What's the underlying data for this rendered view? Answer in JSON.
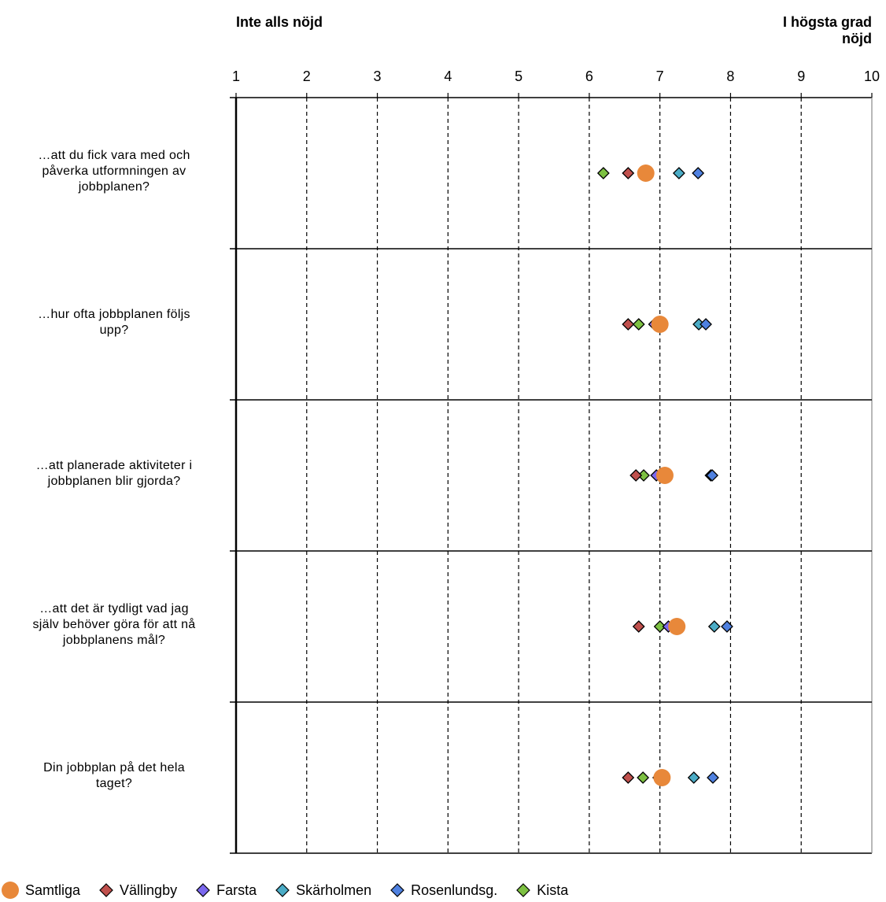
{
  "chart_data": {
    "type": "scatter",
    "axis_left_label": "Inte alls nöjd",
    "axis_right_label": "I högsta grad nöjd",
    "xlim": [
      1,
      10
    ],
    "ticks": [
      "1",
      "2",
      "3",
      "4",
      "5",
      "6",
      "7",
      "8",
      "9",
      "10"
    ],
    "grid": true,
    "orientation": "horizontal dot plot",
    "categories": [
      "…att du fick vara med och påverka utformningen av jobbplanen?",
      "…hur ofta jobbplanen följs upp?",
      "…att planerade aktiviteter i jobbplanen blir gjorda?",
      "…att det är tydligt vad jag själv behöver göra för att nå jobbplanens mål?",
      "Din jobbplan på det hela taget?"
    ],
    "series": [
      {
        "name": "Samtliga",
        "marker": "circle",
        "color": "#E8883A",
        "values": [
          6.8,
          7.0,
          7.07,
          7.24,
          7.03
        ]
      },
      {
        "name": "Vällingby",
        "marker": "diamond",
        "color": "#C0504D",
        "values": [
          6.55,
          6.55,
          6.66,
          6.7,
          6.55
        ]
      },
      {
        "name": "Farsta",
        "marker": "diamond",
        "color": "#7B68EE",
        "values": [
          6.8,
          6.92,
          6.95,
          7.12,
          6.98
        ]
      },
      {
        "name": "Skärholmen",
        "marker": "diamond",
        "color": "#4BACC6",
        "values": [
          7.27,
          7.55,
          7.72,
          7.77,
          7.48
        ]
      },
      {
        "name": "Rosenlundsg.",
        "marker": "diamond",
        "color": "#4F81E0",
        "values": [
          7.54,
          7.65,
          7.74,
          7.95,
          7.75
        ]
      },
      {
        "name": "Kista",
        "marker": "diamond",
        "color": "#7DC142",
        "values": [
          6.2,
          6.7,
          6.77,
          7.0,
          6.76
        ]
      }
    ]
  },
  "legend": {
    "items": [
      {
        "label": "Samtliga"
      },
      {
        "label": "Vällingby"
      },
      {
        "label": "Farsta"
      },
      {
        "label": "Skärholmen"
      },
      {
        "label": "Rosenlundsg."
      },
      {
        "label": "Kista"
      }
    ]
  }
}
